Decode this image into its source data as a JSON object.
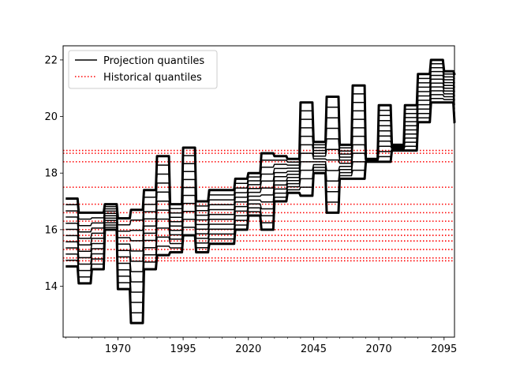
{
  "chart_data": {
    "type": "line",
    "title": "",
    "xlabel": "",
    "ylabel": "",
    "xlim": [
      1949,
      2099
    ],
    "ylim": [
      12.2,
      22.5
    ],
    "x_ticks": [
      {
        "value": 1970,
        "label": "1970"
      },
      {
        "value": 1995,
        "label": "1995"
      },
      {
        "value": 2020,
        "label": "2020"
      },
      {
        "value": 2045,
        "label": "2045"
      },
      {
        "value": 2070,
        "label": "2070"
      },
      {
        "value": 2095,
        "label": "2095"
      }
    ],
    "y_ticks": [
      {
        "value": 14,
        "label": "14"
      },
      {
        "value": 16,
        "label": "16"
      },
      {
        "value": 18,
        "label": "18"
      },
      {
        "value": 20,
        "label": "20"
      },
      {
        "value": 22,
        "label": "22"
      }
    ],
    "legend": {
      "placement": "top-left",
      "entries": [
        {
          "label": "Projection quantiles",
          "color": "#000000",
          "style": "solid"
        },
        {
          "label": "Historical quantiles",
          "color": "#ff0000",
          "style": "dotted"
        }
      ]
    },
    "projection_x": [
      1950,
      1955,
      1960,
      1965,
      1970,
      1975,
      1980,
      1985,
      1990,
      1995,
      2000,
      2005,
      2010,
      2015,
      2020,
      2025,
      2030,
      2035,
      2040,
      2045,
      2050,
      2055,
      2060,
      2065,
      2070,
      2075,
      2080,
      2085,
      2090,
      2095,
      2099
    ],
    "projection_low": [
      14.7,
      14.1,
      14.6,
      16.0,
      13.9,
      12.7,
      14.6,
      15.1,
      15.2,
      15.8,
      15.2,
      15.5,
      15.5,
      16.0,
      16.5,
      16.0,
      17.0,
      17.3,
      17.2,
      18.0,
      16.6,
      17.8,
      17.8,
      18.4,
      18.4,
      18.8,
      18.8,
      19.8,
      20.5,
      20.5,
      19.8
    ],
    "projection_high": [
      17.1,
      16.6,
      16.6,
      16.9,
      16.4,
      16.7,
      17.4,
      18.6,
      16.9,
      18.9,
      17.0,
      17.4,
      17.4,
      17.8,
      18.0,
      18.7,
      18.6,
      18.5,
      20.5,
      19.1,
      20.7,
      19.0,
      21.1,
      18.5,
      20.4,
      19.0,
      20.4,
      21.5,
      22.0,
      21.6,
      21.5
    ],
    "projection_quantile_count": 12,
    "historical_quantiles": [
      14.9,
      15.0,
      15.3,
      15.6,
      15.8,
      16.0,
      16.3,
      16.6,
      16.9,
      17.5,
      18.4,
      18.7,
      18.8
    ]
  }
}
